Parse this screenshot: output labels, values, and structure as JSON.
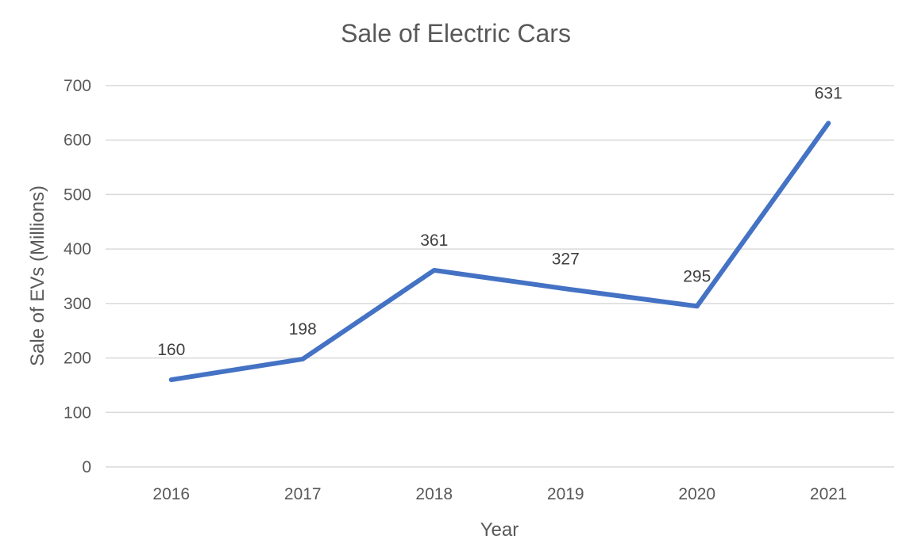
{
  "chart_data": {
    "type": "line",
    "title": "Sale of Electric Cars",
    "xlabel": "Year",
    "ylabel": "Sale of EVs (Millions)",
    "categories": [
      "2016",
      "2017",
      "2018",
      "2019",
      "2020",
      "2021"
    ],
    "series": [
      {
        "values": [
          160,
          198,
          361,
          327,
          295,
          631
        ],
        "color": "#4472C4"
      }
    ],
    "data_labels": [
      "160",
      "198",
      "361",
      "327",
      "295",
      "631"
    ],
    "ylim": [
      0,
      700
    ],
    "yticks": [
      "0",
      "100",
      "200",
      "300",
      "400",
      "500",
      "600",
      "700"
    ],
    "grid": true,
    "legend": "none"
  }
}
